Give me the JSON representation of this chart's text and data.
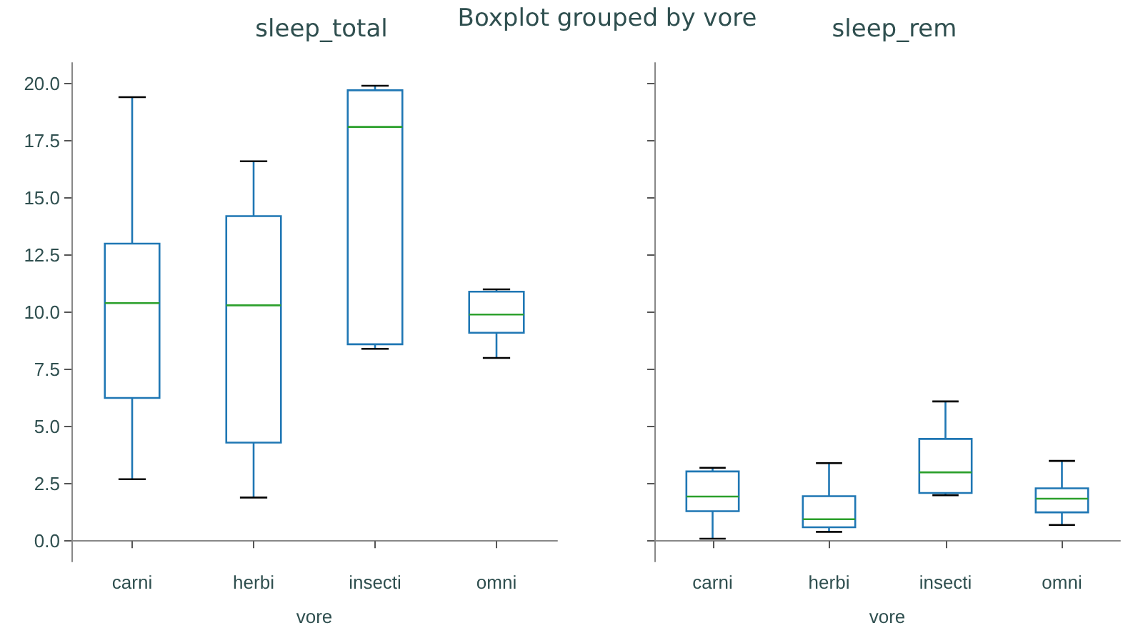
{
  "chart_data": [
    {
      "type": "box",
      "title": "sleep_total",
      "xlabel": "vore",
      "annotations": [
        "Boxplot grouped by vore"
      ],
      "categories": [
        "carni",
        "herbi",
        "insecti",
        "omni"
      ],
      "ylim": [
        -0.9,
        20.9
      ],
      "yticks": [
        {
          "value": 0,
          "label": "0.0"
        },
        {
          "value": 2.5,
          "label": "2.5"
        },
        {
          "value": 5,
          "label": "5.0"
        },
        {
          "value": 7.5,
          "label": "7.5"
        },
        {
          "value": 10,
          "label": "10.0"
        },
        {
          "value": 12.5,
          "label": "12.5"
        },
        {
          "value": 15,
          "label": "15.0"
        },
        {
          "value": 17.5,
          "label": "17.5"
        },
        {
          "value": 20,
          "label": "20.0"
        }
      ],
      "grid": false,
      "series": [
        {
          "color": "#1f77b4",
          "boxes": [
            {
              "low": 2.7,
              "q1": 6.25,
              "median": 10.4,
              "q3": 13.0,
              "high": 19.4
            },
            {
              "low": 1.9,
              "q1": 4.3,
              "median": 10.3,
              "q3": 14.2,
              "high": 16.6
            },
            {
              "low": 8.4,
              "q1": 8.6,
              "median": 18.1,
              "q3": 19.7,
              "high": 19.9
            },
            {
              "low": 8.0,
              "q1": 9.1,
              "median": 9.9,
              "q3": 10.9,
              "high": 11.0
            }
          ]
        }
      ]
    },
    {
      "type": "box",
      "title": "sleep_rem",
      "xlabel": "vore",
      "categories": [
        "carni",
        "herbi",
        "insecti",
        "omni"
      ],
      "ylim": [
        -0.9,
        20.9
      ],
      "yticks": [
        0,
        2.5,
        5,
        7.5,
        10,
        12.5,
        15,
        17.5,
        20
      ],
      "tick_labels": "x",
      "grid": false,
      "series": [
        {
          "color": "#1f77b4",
          "boxes": [
            {
              "low": 0.1,
              "q1": 1.3,
              "median": 1.94,
              "q3": 3.04,
              "high": 3.2
            },
            {
              "low": 0.4,
              "q1": 0.6,
              "median": 0.95,
              "q3": 1.96,
              "high": 3.4
            },
            {
              "low": 2.0,
              "q1": 2.1,
              "median": 3.0,
              "q3": 4.46,
              "high": 6.1
            },
            {
              "low": 0.7,
              "q1": 1.25,
              "median": 1.85,
              "q3": 2.3,
              "high": 3.5
            }
          ]
        }
      ]
    }
  ]
}
